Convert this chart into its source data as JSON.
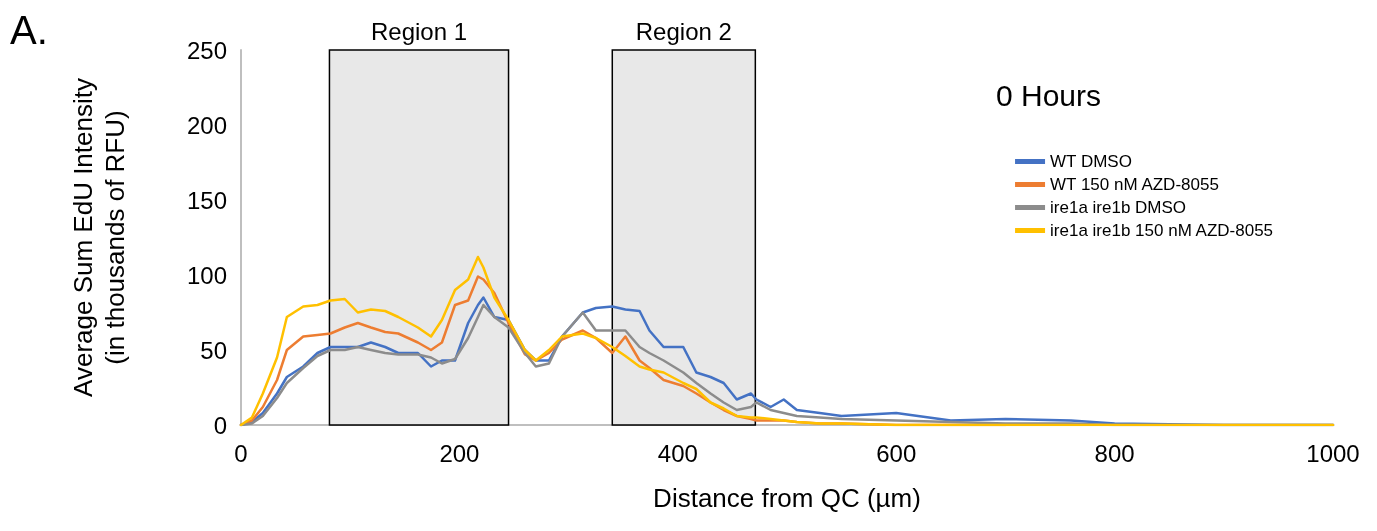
{
  "chart_data": {
    "type": "line",
    "xlabel": "Distance from QC (µm)",
    "ylabel": "Average Sum EdU Intensity\n(in thousands of RFU)",
    "legend_title": "0 Hours",
    "annotations": [
      "A."
    ],
    "x": [
      0,
      10,
      20,
      33,
      42,
      57,
      70,
      82,
      95,
      107,
      119,
      132,
      144,
      162,
      174,
      184,
      196,
      208,
      217,
      222,
      232,
      245,
      260,
      270,
      282,
      294,
      313,
      325,
      340,
      352,
      365,
      374,
      387,
      405,
      417,
      430,
      442,
      454,
      467,
      472,
      485,
      497,
      509,
      530,
      550,
      600,
      650,
      700,
      760,
      800,
      900,
      1000
    ],
    "series": [
      {
        "name": "WT DMSO",
        "color": "#4472c4",
        "values": [
          0,
          2,
          8,
          21,
          32,
          39,
          48,
          52,
          52,
          52,
          55,
          52,
          48,
          48,
          39,
          43,
          43,
          68,
          80,
          85,
          72,
          70,
          50,
          43,
          43,
          59,
          75,
          78,
          79,
          77,
          76,
          63,
          52,
          52,
          35,
          32,
          28,
          17,
          21,
          17,
          12,
          17,
          10,
          8,
          6,
          8,
          3,
          4,
          3,
          1,
          0,
          0
        ]
      },
      {
        "name": "WT 150 nM AZD-8055",
        "color": "#ed7d31",
        "values": [
          0,
          3,
          12,
          30,
          50,
          59,
          60,
          61,
          65,
          68,
          65,
          62,
          61,
          55,
          50,
          55,
          80,
          83,
          99,
          97,
          88,
          68,
          47,
          43,
          48,
          57,
          63,
          58,
          48,
          59,
          43,
          38,
          30,
          26,
          21,
          15,
          10,
          6,
          4,
          3,
          3,
          3,
          2,
          1,
          1,
          0,
          0,
          0,
          null,
          null,
          null,
          null
        ]
      },
      {
        "name": "ire1a ire1b DMSO",
        "color": "#8c8c8c",
        "values": [
          0,
          1,
          6,
          18,
          28,
          38,
          46,
          50,
          50,
          52,
          50,
          48,
          47,
          47,
          45,
          41,
          44,
          58,
          72,
          80,
          72,
          65,
          48,
          39,
          41,
          59,
          75,
          63,
          63,
          63,
          52,
          48,
          43,
          35,
          28,
          21,
          15,
          10,
          12,
          15,
          10,
          8,
          6,
          5,
          4,
          3,
          2,
          1,
          1,
          0,
          0,
          0
        ]
      },
      {
        "name": "ire1a ire1b 150 nM AZD-8055",
        "color": "#ffc000",
        "values": [
          0,
          5,
          21,
          45,
          72,
          79,
          80,
          83,
          84,
          75,
          77,
          76,
          72,
          65,
          59,
          70,
          90,
          97,
          112,
          105,
          85,
          70,
          50,
          43,
          50,
          59,
          61,
          58,
          52,
          46,
          39,
          37,
          35,
          28,
          24,
          15,
          11,
          6,
          5,
          5,
          4,
          3,
          2,
          1,
          1,
          0,
          0,
          0,
          0,
          0,
          0,
          0
        ]
      }
    ],
    "bands": [
      {
        "axis": "x",
        "from": 81,
        "to": 245,
        "label": "Region 1",
        "color": "#e8e8e8"
      },
      {
        "axis": "x",
        "from": 340,
        "to": 471,
        "label": "Region 2",
        "color": "#e8e8e8"
      }
    ],
    "xlim": [
      0,
      1000
    ],
    "xticks": [
      0,
      200,
      400,
      600,
      800,
      1000
    ],
    "ylim": [
      0,
      250
    ],
    "yticks": [
      0,
      50,
      100,
      150,
      200,
      250
    ],
    "grid": false,
    "legend": "top right",
    "marker": "none",
    "line_style": "solid"
  }
}
